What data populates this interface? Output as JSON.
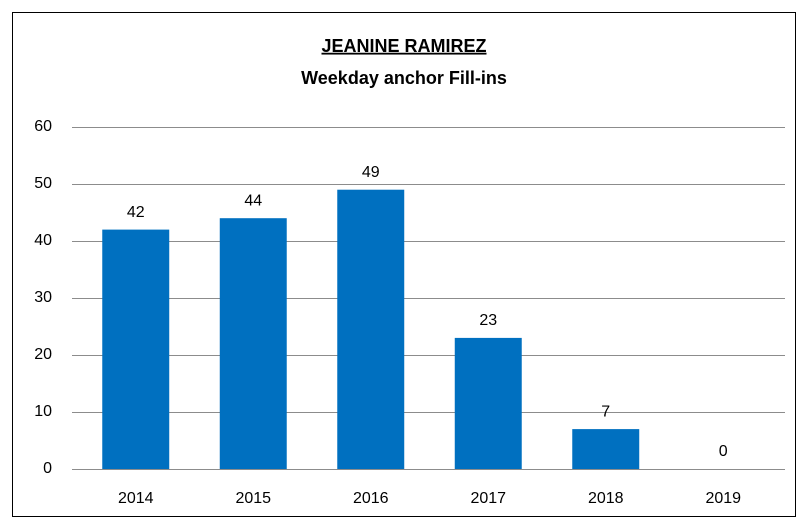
{
  "chart_data": {
    "type": "bar",
    "title": "JEANINE RAMIREZ",
    "subtitle": "Weekday anchor Fill-ins",
    "categories": [
      "2014",
      "2015",
      "2016",
      "2017",
      "2018",
      "2019"
    ],
    "values": [
      42,
      44,
      49,
      23,
      7,
      0
    ],
    "color": "#0070c0",
    "ylim": [
      0,
      60
    ],
    "yticks": [
      0,
      10,
      20,
      30,
      40,
      50,
      60
    ],
    "grid": true
  }
}
